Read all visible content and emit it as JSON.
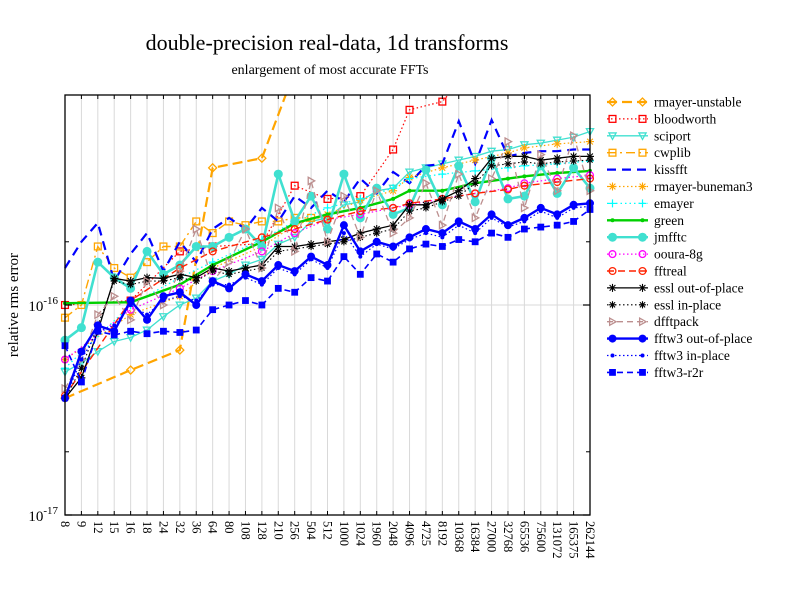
{
  "chart_data": {
    "type": "line",
    "title": "double-precision real-data, 1d transforms",
    "subtitle": "enlargement of most accurate FFTs",
    "ylabel": "relative rms error",
    "xlabel": "",
    "y_scale": "log",
    "ylim": [
      "1e-17",
      "1e-15"
    ],
    "values_unit": "1e-16",
    "grid": "vertical gridline at every size; horizontal gridline at 1e-16",
    "legend_position": "right",
    "x_tick_rotation": 90,
    "y_ticks": [
      {
        "base": "10",
        "exp": "-16",
        "value": 1.0
      },
      {
        "base": "10",
        "exp": "-17",
        "value": 0.1
      }
    ],
    "y_minor_ticks": [
      0.2,
      2.0
    ],
    "categories": [
      8,
      9,
      12,
      15,
      16,
      18,
      24,
      32,
      36,
      64,
      80,
      108,
      128,
      210,
      256,
      504,
      512,
      1000,
      1024,
      1960,
      2048,
      4096,
      4725,
      8192,
      10368,
      16384,
      27000,
      32768,
      65536,
      75600,
      131072,
      165375,
      262144
    ],
    "series": [
      {
        "name": "rmayer-unstable",
        "color": "#FFA500",
        "dash": "10,5",
        "width": 2.2,
        "marker": "diamond-open",
        "msize": 4,
        "values": [
          0.36,
          null,
          null,
          null,
          0.49,
          null,
          null,
          0.61,
          null,
          4.5,
          null,
          null,
          5,
          null,
          13,
          null,
          null,
          null,
          null,
          null,
          null,
          null,
          null,
          null,
          null,
          null,
          null,
          null,
          null,
          null,
          null,
          null,
          null
        ]
      },
      {
        "name": "bloodworth",
        "color": "#FF0000",
        "dash": "1.5,2.5",
        "width": 1.2,
        "marker": "square-open",
        "msize": 3.4,
        "values": [
          1,
          null,
          null,
          null,
          1.05,
          null,
          null,
          1.8,
          null,
          1.9,
          null,
          null,
          1.96,
          null,
          3.7,
          null,
          3.2,
          null,
          3.3,
          null,
          5.5,
          8.5,
          null,
          9.3,
          null,
          14,
          null,
          null,
          null,
          null,
          null,
          null,
          null
        ]
      },
      {
        "name": "sciport",
        "color": "#40E0D0",
        "dash": "",
        "width": 1.3,
        "marker": "triangle-down-open",
        "msize": 3.6,
        "values": [
          0.48,
          0.53,
          0.6,
          0.67,
          0.7,
          0.76,
          0.88,
          1,
          1.08,
          1.3,
          1.4,
          1.55,
          1.65,
          1.95,
          2.1,
          2.5,
          2.6,
          3,
          3.1,
          3.5,
          3.6,
          4.3,
          4.5,
          4.7,
          4.9,
          5.1,
          5.4,
          5.5,
          5.8,
          5.9,
          6.1,
          6.3,
          6.7
        ]
      },
      {
        "name": "cwplib",
        "color": "#FFA500",
        "dash": "9,4,2,4",
        "width": 1.4,
        "marker": "square-open",
        "msize": 3.4,
        "values": [
          0.87,
          1,
          1.9,
          1.5,
          1.35,
          1.6,
          1.9,
          1.9,
          2.5,
          2.2,
          2.5,
          2.4,
          2.5,
          2.5,
          2.6,
          2.6,
          2.6,
          null,
          null,
          null,
          null,
          null,
          null,
          null,
          null,
          null,
          null,
          null,
          null,
          null,
          null,
          null,
          null
        ]
      },
      {
        "name": "kissfft",
        "color": "#0000FF",
        "dash": "9,6",
        "width": 2.2,
        "marker": "none",
        "msize": 0,
        "values": [
          1.5,
          2,
          2.46,
          1.3,
          1.75,
          2.2,
          1.45,
          2,
          1.6,
          2.3,
          2.6,
          2.3,
          2.9,
          2.5,
          3.3,
          2.9,
          3.5,
          3.1,
          4,
          3.4,
          4.3,
          3.8,
          4.6,
          4.7,
          7.5,
          4.7,
          7.6,
          5.1,
          5.3,
          5.4,
          5.4,
          5.5,
          5.5
        ]
      },
      {
        "name": "rmayer-buneman3",
        "color": "#FFA500",
        "dash": "1.5,2.5",
        "width": 1.2,
        "marker": "asterisk",
        "msize": 4,
        "values": [
          0.55,
          null,
          null,
          null,
          0.9,
          null,
          null,
          1.1,
          null,
          1.5,
          null,
          null,
          1.9,
          null,
          2.4,
          null,
          2.7,
          null,
          3.15,
          null,
          3.5,
          4.05,
          null,
          4.5,
          null,
          4.9,
          null,
          5.3,
          5.6,
          null,
          5.85,
          null,
          6
        ]
      },
      {
        "name": "emayer",
        "color": "#00FFFF",
        "dash": "1.5,3",
        "width": 1.3,
        "marker": "plus",
        "msize": 4,
        "values": [
          0.5,
          null,
          null,
          null,
          1,
          null,
          null,
          1.35,
          null,
          1.6,
          null,
          null,
          2.05,
          null,
          2.5,
          null,
          2.9,
          null,
          3.2,
          null,
          3.6,
          4,
          null,
          4.2,
          null,
          4.35,
          null,
          4.5,
          4.6,
          null,
          4.7,
          null,
          4.85
        ]
      },
      {
        "name": "green",
        "color": "#00D000",
        "dash": "",
        "width": 2.4,
        "marker": "dot",
        "msize": 2,
        "values": [
          1.02,
          null,
          null,
          null,
          1.03,
          null,
          null,
          1.25,
          null,
          1.55,
          null,
          null,
          2,
          null,
          2.45,
          null,
          2.7,
          null,
          2.9,
          null,
          3.2,
          3.5,
          null,
          3.5,
          null,
          3.8,
          null,
          4,
          4.1,
          null,
          4.25,
          null,
          4.35
        ]
      },
      {
        "name": "jmfftc",
        "color": "#40E0D0",
        "dash": "",
        "width": 2.6,
        "marker": "circle-filled",
        "msize": 4.5,
        "values": [
          0.68,
          0.78,
          1.6,
          1.35,
          1.2,
          1.8,
          1.4,
          1.55,
          1.9,
          1.9,
          2.1,
          2.3,
          1.9,
          4.2,
          2.5,
          3.3,
          2.3,
          4.2,
          2.6,
          3.6,
          2.7,
          2.9,
          4.4,
          3,
          4.6,
          3.1,
          5,
          3.2,
          3.3,
          4.6,
          3.4,
          4.5,
          3.6
        ]
      },
      {
        "name": "ooura-8g",
        "color": "#FF00FF",
        "dash": "1.5,2.5",
        "width": 1.2,
        "marker": "circle-open",
        "msize": 3.4,
        "values": [
          0.55,
          null,
          null,
          null,
          0.95,
          null,
          null,
          1.2,
          null,
          1.45,
          null,
          null,
          1.8,
          null,
          2.2,
          null,
          2.55,
          null,
          2.7,
          null,
          2.9,
          3,
          null,
          3.2,
          null,
          3.4,
          null,
          3.6,
          3.8,
          null,
          4,
          null,
          4.15
        ]
      },
      {
        "name": "fftreal",
        "color": "#FF2200",
        "dash": "7,4",
        "width": 1.4,
        "marker": "circle-open",
        "msize": 3.4,
        "values": [
          0.37,
          null,
          null,
          null,
          1.05,
          null,
          null,
          1.5,
          null,
          1.8,
          null,
          null,
          2.1,
          null,
          2.3,
          null,
          2.55,
          null,
          2.8,
          null,
          2.9,
          3.05,
          null,
          3.2,
          null,
          3.4,
          null,
          3.55,
          3.7,
          null,
          3.85,
          null,
          4
        ]
      },
      {
        "name": "essl out-of-place",
        "color": "#000000",
        "dash": "",
        "width": 1.3,
        "marker": "asterisk",
        "msize": 4,
        "values": [
          0.36,
          0.45,
          0.75,
          1.34,
          1.3,
          1.35,
          1.34,
          1.4,
          1.35,
          1.5,
          1.45,
          1.5,
          1.55,
          1.9,
          1.9,
          1.95,
          2,
          2.05,
          2.2,
          2.3,
          2.4,
          3,
          3,
          3.2,
          3.5,
          4,
          5,
          5.1,
          5.1,
          4.9,
          5,
          5.1,
          5.1
        ]
      },
      {
        "name": "essl in-place",
        "color": "#000000",
        "dash": "1.5,2.5",
        "width": 1.1,
        "marker": "asterisk",
        "msize": 3.6,
        "values": [
          0.36,
          0.5,
          0.8,
          1.3,
          1.25,
          1.3,
          1.3,
          1.35,
          1.3,
          1.45,
          1.4,
          1.45,
          1.5,
          1.8,
          1.85,
          1.9,
          1.95,
          2,
          2.1,
          2.2,
          2.3,
          2.8,
          2.9,
          3.1,
          3.3,
          3.8,
          4.6,
          4.7,
          4.8,
          4.7,
          4.8,
          4.85,
          4.9
        ]
      },
      {
        "name": "dfftpack",
        "color": "#BC8F8F",
        "dash": "6,4",
        "width": 1.3,
        "marker": "triangle-right-open",
        "msize": 3.6,
        "values": [
          0.4,
          0.55,
          0.9,
          1.1,
          0.85,
          1.3,
          1,
          1.45,
          2.3,
          1.3,
          1.6,
          2.3,
          1.5,
          2.9,
          1.8,
          3.9,
          2,
          3.3,
          2.1,
          3.5,
          2.2,
          2.6,
          3.8,
          2.4,
          4.2,
          2.6,
          4,
          6,
          2.9,
          5.2,
          3.5,
          6.4,
          3.5
        ]
      },
      {
        "name": "fftw3 out-of-place",
        "color": "#0000FF",
        "dash": "",
        "width": 2.4,
        "marker": "circle-filled",
        "msize": 4,
        "values": [
          0.36,
          0.6,
          0.8,
          0.75,
          1.05,
          0.85,
          1.1,
          1.15,
          1,
          1.3,
          1.2,
          1.4,
          1.3,
          1.55,
          1.45,
          1.7,
          1.55,
          2.4,
          1.8,
          2,
          1.9,
          2.1,
          2.3,
          2.2,
          2.5,
          2.3,
          2.7,
          2.4,
          2.6,
          2.9,
          2.7,
          3,
          3.05
        ]
      },
      {
        "name": "fftw3 in-place",
        "color": "#0000FF",
        "dash": "1.5,2.5",
        "width": 1.2,
        "marker": "circle-small",
        "msize": 2,
        "values": [
          0.36,
          0.55,
          0.75,
          0.8,
          1,
          0.9,
          1.05,
          1.1,
          1.05,
          1.25,
          1.25,
          1.35,
          1.25,
          1.5,
          1.4,
          1.65,
          1.5,
          2.2,
          1.7,
          1.95,
          1.85,
          2.05,
          2.2,
          2.1,
          2.4,
          2.2,
          2.6,
          2.35,
          2.5,
          2.8,
          2.6,
          2.9,
          2.95
        ]
      },
      {
        "name": "fftw3-r2r",
        "color": "#0000FF",
        "dash": "6,4",
        "width": 1.6,
        "marker": "square-filled",
        "msize": 3.4,
        "values": [
          0.64,
          0.43,
          0.75,
          0.72,
          0.75,
          0.73,
          0.75,
          0.74,
          0.76,
          0.95,
          1,
          1.05,
          1,
          1.2,
          1.15,
          1.35,
          1.3,
          1.7,
          1.4,
          1.75,
          1.6,
          1.85,
          1.95,
          1.9,
          2.05,
          2,
          2.2,
          2.1,
          2.3,
          2.35,
          2.4,
          2.5,
          2.85
        ]
      }
    ]
  }
}
